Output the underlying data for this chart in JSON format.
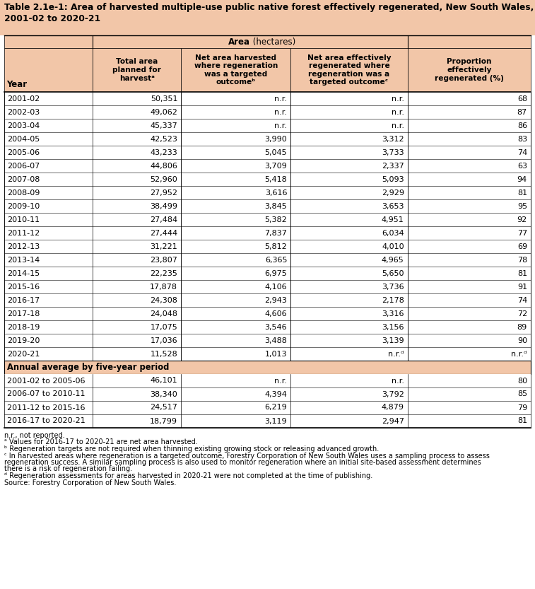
{
  "title_line1": "Table 2.1e-1: Area of harvested multiple-use public native forest effectively regenerated, New South Wales,",
  "title_line2": "2001-02 to 2020-21",
  "header_color": "#F2C6A8",
  "bg_color": "#FFFFFF",
  "border_color": "#000000",
  "text_color": "#000000",
  "col_headers": [
    "Total area\nplanned for\nharvestᵃ",
    "Net area harvested\nwhere regeneration\nwas a targeted\noutcomeᵇ",
    "Net area effectively\nregenerated where\nregeneration was a\ntargeted outcomeᶜ",
    "Proportion\neffectively\nregenerated (%)"
  ],
  "year_header": "Year",
  "area_header": "Area",
  "area_unit": " (hectares)",
  "rows": [
    [
      "2001-02",
      "50,351",
      "n.r.",
      "n.r.",
      "68"
    ],
    [
      "2002-03",
      "49,062",
      "n.r.",
      "n.r.",
      "87"
    ],
    [
      "2003-04",
      "45,337",
      "n.r.",
      "n.r.",
      "86"
    ],
    [
      "2004-05",
      "42,523",
      "3,990",
      "3,312",
      "83"
    ],
    [
      "2005-06",
      "43,233",
      "5,045",
      "3,733",
      "74"
    ],
    [
      "2006-07",
      "44,806",
      "3,709",
      "2,337",
      "63"
    ],
    [
      "2007-08",
      "52,960",
      "5,418",
      "5,093",
      "94"
    ],
    [
      "2008-09",
      "27,952",
      "3,616",
      "2,929",
      "81"
    ],
    [
      "2009-10",
      "38,499",
      "3,845",
      "3,653",
      "95"
    ],
    [
      "2010-11",
      "27,484",
      "5,382",
      "4,951",
      "92"
    ],
    [
      "2011-12",
      "27,444",
      "7,837",
      "6,034",
      "77"
    ],
    [
      "2012-13",
      "31,221",
      "5,812",
      "4,010",
      "69"
    ],
    [
      "2013-14",
      "23,807",
      "6,365",
      "4,965",
      "78"
    ],
    [
      "2014-15",
      "22,235",
      "6,975",
      "5,650",
      "81"
    ],
    [
      "2015-16",
      "17,878",
      "4,106",
      "3,736",
      "91"
    ],
    [
      "2016-17",
      "24,308",
      "2,943",
      "2,178",
      "74"
    ],
    [
      "2017-18",
      "24,048",
      "4,606",
      "3,316",
      "72"
    ],
    [
      "2018-19",
      "17,075",
      "3,546",
      "3,156",
      "89"
    ],
    [
      "2019-20",
      "17,036",
      "3,488",
      "3,139",
      "90"
    ],
    [
      "2020-21",
      "11,528",
      "1,013",
      "n.r.ᵈ",
      "n.r.ᵈ"
    ]
  ],
  "avg_header": "Annual average by five-year period",
  "avg_rows": [
    [
      "2001-02 to 2005-06",
      "46,101",
      "n.r.",
      "n.r.",
      "80"
    ],
    [
      "2006-07 to 2010-11",
      "38,340",
      "4,394",
      "3,792",
      "85"
    ],
    [
      "2011-12 to 2015-16",
      "24,517",
      "6,219",
      "4,879",
      "79"
    ],
    [
      "2016-17 to 2020-21",
      "18,799",
      "3,119",
      "2,947",
      "81"
    ]
  ],
  "footnote0": "n.r., not reported.",
  "footnote_a": "ᵃ Values for 2016-17 to 2020-21 are net area harvested.",
  "footnote_b": "ᵇ Regeneration targets are not required when thinning existing growing stock or releasing advanced growth.",
  "footnote_c1": "ᶜ In harvested areas where regeneration is a targeted outcome, Forestry Corporation of New South Wales uses a sampling process to assess",
  "footnote_c2": "regeneration success. A similar sampling process is also used to monitor regeneration where an initial site-based assessment determines",
  "footnote_c3": "there is a risk of regeneration failing.",
  "footnote_d": "ᵈ Regeneration assessments for areas harvested in 2020-21 were not completed at the time of publishing.",
  "footnote_src": "Source: Forestry Corporation of New South Wales."
}
